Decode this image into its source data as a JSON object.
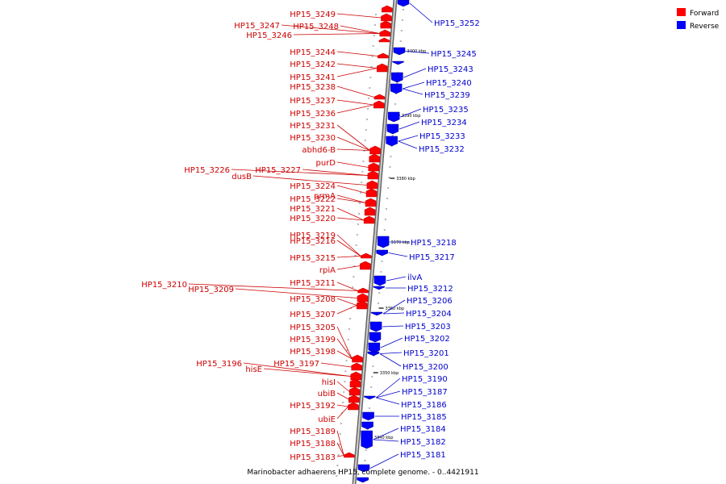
{
  "caption": "Marinobacter adhaerens HP15, complete genome. - 0..4421911",
  "legend": {
    "forward": {
      "label": "Forward",
      "color": "#ff0000"
    },
    "reverse": {
      "label": "Reverse",
      "color": "#0000ff"
    }
  },
  "ticks": [
    "3400 kbp",
    "3390 kbp",
    "3380 kbp",
    "3370 kbp",
    "3360 kbp",
    "3350 kbp",
    "3340 kbp"
  ],
  "forward_genes": [
    "HP15_3249",
    "HP15_3247",
    "HP15_3248",
    "HP15_3246",
    "HP15_3244",
    "HP15_3242",
    "HP15_3241",
    "HP15_3238",
    "HP15_3237",
    "HP15_3236",
    "HP15_3231",
    "HP15_3230",
    "abhd6-B",
    "purD",
    "HP15_3226",
    "HP15_3227",
    "dusB",
    "HP15_3224",
    "prmA",
    "HP15_3222",
    "HP15_3221",
    "HP15_3220",
    "HP15_3219",
    "HP15_3216",
    "HP15_3215",
    "rpiA",
    "HP15_3211",
    "HP15_3210",
    "HP15_3209",
    "HP15_3208",
    "HP15_3207",
    "HP15_3205",
    "HP15_3199",
    "HP15_3198",
    "HP15_3197",
    "HP15_3196",
    "hisE",
    "hisI",
    "ubiB",
    "HP15_3192",
    "ubiE",
    "HP15_3189",
    "HP15_3188",
    "HP15_3183"
  ],
  "reverse_genes": [
    "HP15_3252",
    "HP15_3245",
    "HP15_3243",
    "HP15_3240",
    "HP15_3239",
    "HP15_3235",
    "HP15_3234",
    "HP15_3233",
    "HP15_3232",
    "HP15_3218",
    "HP15_3217",
    "ilvA",
    "HP15_3212",
    "HP15_3206",
    "HP15_3204",
    "HP15_3203",
    "HP15_3202",
    "HP15_3201",
    "HP15_3200",
    "HP15_3190",
    "HP15_3187",
    "HP15_3186",
    "HP15_3185",
    "HP15_3184",
    "HP15_3182",
    "HP15_3181"
  ]
}
